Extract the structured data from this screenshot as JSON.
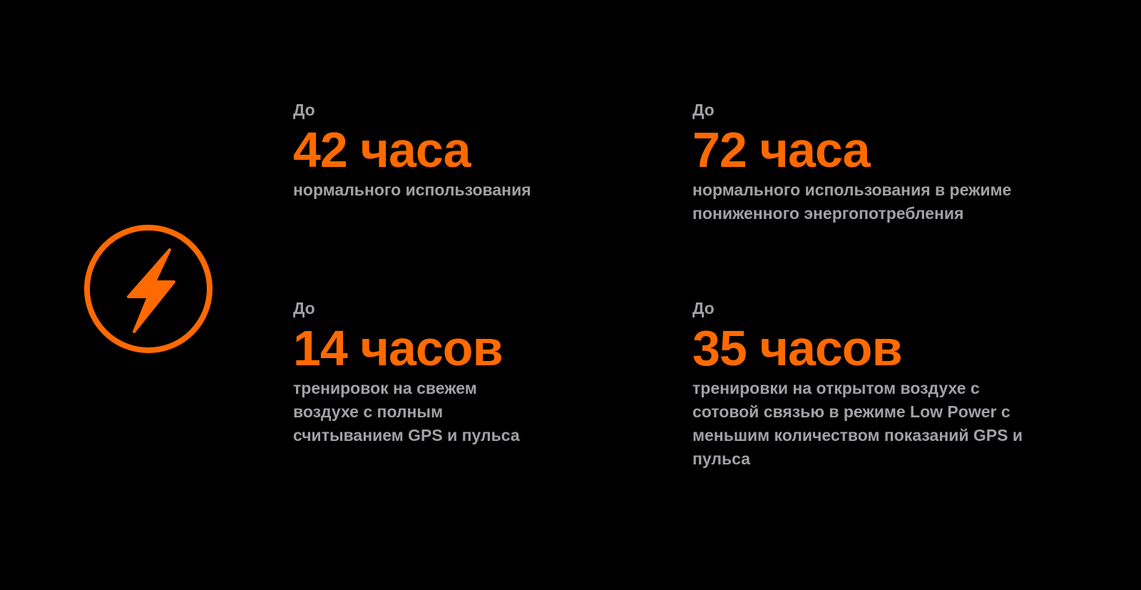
{
  "icon": {
    "name": "lightning-bolt-icon",
    "color": "#ff6a00"
  },
  "colors": {
    "accent": "#ff6a00",
    "text_secondary": "#a1a1a6",
    "background": "#000000"
  },
  "stats": [
    {
      "prefix": "До",
      "value": "42 часа",
      "description": "нормального использования"
    },
    {
      "prefix": "До",
      "value": "72 часа",
      "description": "нормального использования в режиме пониженного энергопотребления"
    },
    {
      "prefix": "До",
      "value": "14 часов",
      "description": "тренировок на свежем воздухе с полным считыванием GPS и пульса"
    },
    {
      "prefix": "До",
      "value": "35 часов",
      "description": "тренировки на открытом воздухе с сотовой связью в режиме Low Power с меньшим количеством показаний GPS и пульса"
    }
  ]
}
